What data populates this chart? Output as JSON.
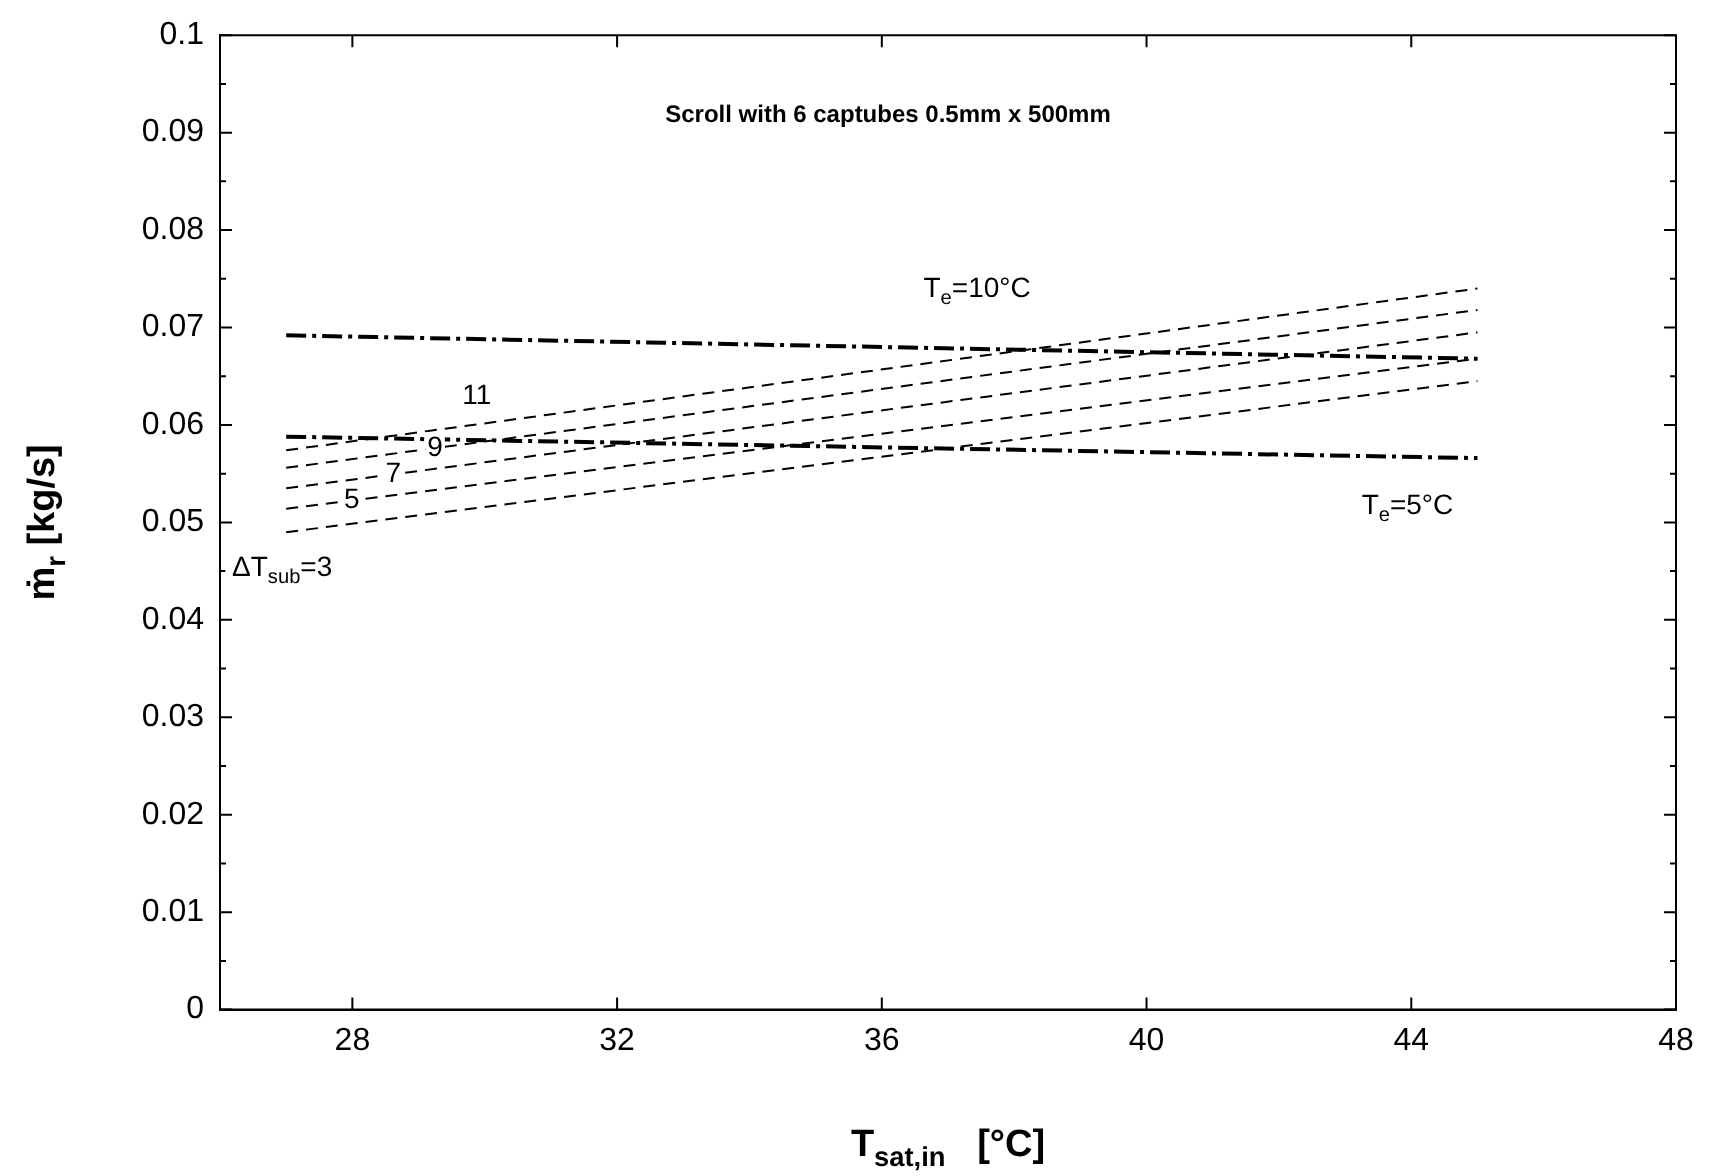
{
  "chart_data": {
    "type": "line",
    "title": "Scroll with 6 captubes 0.5mm x 500mm",
    "xlabel": "T$_{sat,in}$   [°C]",
    "ylabel": "ṁ$_{r}$ [kg/s]",
    "x": [
      27,
      45
    ],
    "series": [
      {
        "name": "T$_{e}$=10°C",
        "color": "#000000",
        "values": [
          0.0692,
          0.0668
        ],
        "line_style": "dashed"
      },
      {
        "name": "T$_{e}$=5°C",
        "color": "#000000",
        "values": [
          0.0588,
          0.0566
        ],
        "line_style": "dashed"
      },
      {
        "name": "ΔT$_{sub}$=3",
        "color": "#000000",
        "values": [
          0.049,
          0.0645
        ],
        "line_style": "dashed"
      },
      {
        "name": "5",
        "color": "#000000",
        "values": [
          0.0514,
          0.0668
        ],
        "line_style": "dashed"
      },
      {
        "name": "7",
        "color": "#000000",
        "values": [
          0.0535,
          0.0695
        ],
        "line_style": "dashed"
      },
      {
        "name": "9",
        "color": "#000000",
        "values": [
          0.0556,
          0.0718
        ],
        "line_style": "dashed"
      },
      {
        "name": "11",
        "color": "#000000",
        "values": [
          0.0574,
          0.074
        ],
        "line_style": "dashed"
      }
    ],
    "xlim": [
      26,
      48
    ],
    "xticks": [
      28,
      32,
      36,
      40,
      44,
      48
    ],
    "ylim": [
      0,
      0.1
    ],
    "yticks": [
      0,
      {
        "value": 0.005,
        "label": null
      },
      0.01,
      {
        "value": 0.015,
        "label": null
      },
      0.02,
      {
        "value": 0.025,
        "label": null
      },
      0.03,
      {
        "value": 0.035,
        "label": null
      },
      0.04,
      {
        "value": 0.045,
        "label": null
      },
      0.05,
      {
        "value": 0.055,
        "label": null
      },
      0.06,
      {
        "value": 0.065,
        "label": null
      },
      0.07,
      {
        "value": 0.075,
        "label": null
      },
      0.08,
      {
        "value": 0.085,
        "label": null
      },
      0.09,
      {
        "value": 0.095,
        "label": null
      },
      0.1
    ],
    "grid": false,
    "legend": false,
    "marker": "none"
  }
}
